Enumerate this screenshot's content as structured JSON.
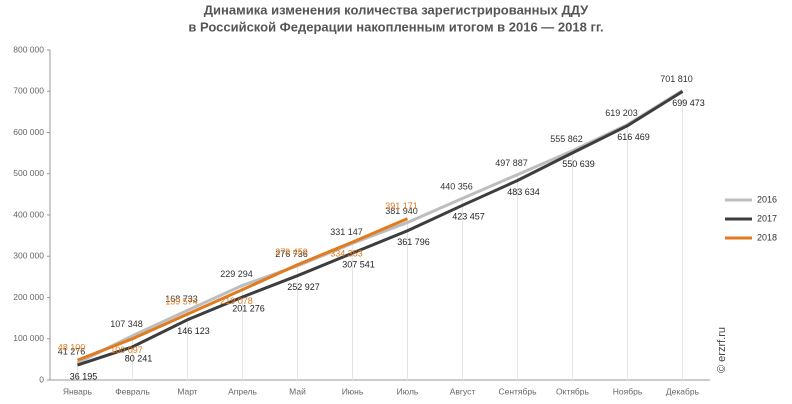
{
  "chart_data": {
    "type": "line",
    "title": [
      "Динамика изменения количества зарегистрированных ДДУ",
      "в Российской Федерации накопленным итогом в 2016 — 2018 гг."
    ],
    "watermark": "© erzrf.ru",
    "categories": [
      "Январь",
      "Февраль",
      "Март",
      "Апрель",
      "Май",
      "Июнь",
      "Июль",
      "Август",
      "Сентябрь",
      "Октябрь",
      "Ноябрь",
      "Декабрь"
    ],
    "series": [
      {
        "name": "2016",
        "color": "#bdbdbd",
        "label_color": "#333333",
        "values": [
          41276,
          107348,
          168733,
          229294,
          276736,
          331147,
          381940,
          440356,
          497887,
          555862,
          619203,
          701810
        ],
        "value_labels": [
          "41 276",
          "107 348",
          "168 733",
          "229 294",
          "276 736",
          "331 147",
          "381 940",
          "440 356",
          "497 887",
          "555 862",
          "619 203",
          "701 810"
        ]
      },
      {
        "name": "2017",
        "color": "#3d3d3d",
        "label_color": "#222222",
        "values": [
          36195,
          80241,
          146123,
          201276,
          252927,
          307541,
          361796,
          423457,
          483634,
          550639,
          616469,
          699473
        ],
        "value_labels": [
          "36 195",
          "80 241",
          "146 123",
          "201 276",
          "252 927",
          "307 541",
          "361 796",
          "423 457",
          "483 634",
          "550 639",
          "616 469",
          "699 473"
        ]
      },
      {
        "name": "2018",
        "color": "#e07b20",
        "label_color": "#e07b20",
        "values": [
          48100,
          100097,
          159574,
          219078,
          279459,
          334353,
          391171,
          null,
          null,
          null,
          null,
          null
        ],
        "value_labels": [
          "48 100",
          "100 097",
          "159 574",
          "219 078",
          "279 459",
          "334 353",
          "391 171",
          null,
          null,
          null,
          null,
          null
        ]
      }
    ],
    "ylim": [
      0,
      800000
    ],
    "yticks": [
      0,
      {
        "value": 100000,
        "label": "100 000"
      },
      {
        "value": 200000,
        "label": "200 000"
      },
      {
        "value": 300000,
        "label": "300 000"
      },
      {
        "value": 400000,
        "label": "400 000"
      },
      {
        "value": 500000,
        "label": "500 000"
      },
      {
        "value": 600000,
        "label": "600 000"
      },
      {
        "value": 700000,
        "label": "700 000"
      },
      {
        "value": 800000,
        "label": "800 000"
      }
    ],
    "legend": "right"
  }
}
